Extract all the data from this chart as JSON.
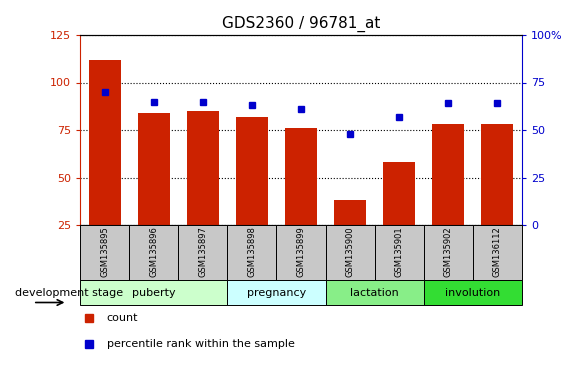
{
  "title": "GDS2360 / 96781_at",
  "samples": [
    "GSM135895",
    "GSM135896",
    "GSM135897",
    "GSM135898",
    "GSM135899",
    "GSM135900",
    "GSM135901",
    "GSM135902",
    "GSM136112"
  ],
  "counts": [
    112,
    84,
    85,
    82,
    76,
    38,
    58,
    78,
    78
  ],
  "percentile_ranks": [
    70,
    65,
    65,
    63,
    61,
    48,
    57,
    64,
    64
  ],
  "left_ylim": [
    25,
    125
  ],
  "left_yticks": [
    25,
    50,
    75,
    100,
    125
  ],
  "right_ylim": [
    0,
    100
  ],
  "right_yticks": [
    0,
    25,
    50,
    75,
    100
  ],
  "bar_color": "#cc2200",
  "dot_color": "#0000cc",
  "background_plot": "#ffffff",
  "background_sample": "#c8c8c8",
  "stage_groups": [
    {
      "label": "puberty",
      "indices": [
        0,
        1,
        2
      ],
      "color": "#ccffcc"
    },
    {
      "label": "pregnancy",
      "indices": [
        3,
        4
      ],
      "color": "#ccffff"
    },
    {
      "label": "lactation",
      "indices": [
        5,
        6
      ],
      "color": "#88ee88"
    },
    {
      "label": "involution",
      "indices": [
        7,
        8
      ],
      "color": "#33dd33"
    }
  ],
  "legend_count_label": "count",
  "legend_pct_label": "percentile rank within the sample",
  "dev_stage_label": "development stage"
}
